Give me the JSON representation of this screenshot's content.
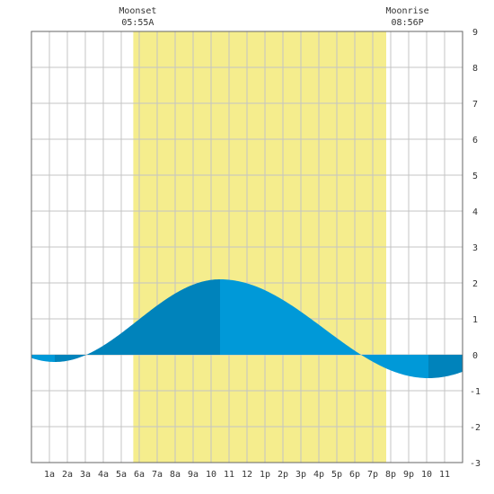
{
  "chart_data": {
    "type": "area",
    "title": "",
    "xlabel": "",
    "ylabel": "",
    "xlim": [
      0,
      24
    ],
    "ylim": [
      -3,
      9
    ],
    "grid": true,
    "x_ticks": [
      {
        "x": 1,
        "label": "1a"
      },
      {
        "x": 2,
        "label": "2a"
      },
      {
        "x": 3,
        "label": "3a"
      },
      {
        "x": 4,
        "label": "4a"
      },
      {
        "x": 5,
        "label": "5a"
      },
      {
        "x": 6,
        "label": "6a"
      },
      {
        "x": 7,
        "label": "7a"
      },
      {
        "x": 8,
        "label": "8a"
      },
      {
        "x": 9,
        "label": "9a"
      },
      {
        "x": 10,
        "label": "10"
      },
      {
        "x": 11,
        "label": "11"
      },
      {
        "x": 12,
        "label": "12"
      },
      {
        "x": 13,
        "label": "1p"
      },
      {
        "x": 14,
        "label": "2p"
      },
      {
        "x": 15,
        "label": "3p"
      },
      {
        "x": 16,
        "label": "4p"
      },
      {
        "x": 17,
        "label": "5p"
      },
      {
        "x": 18,
        "label": "6p"
      },
      {
        "x": 19,
        "label": "7p"
      },
      {
        "x": 20,
        "label": "8p"
      },
      {
        "x": 21,
        "label": "9p"
      },
      {
        "x": 22,
        "label": "10"
      },
      {
        "x": 23,
        "label": "11"
      }
    ],
    "y_ticks": [
      -3,
      -2,
      -1,
      0,
      1,
      2,
      3,
      4,
      5,
      6,
      7,
      8,
      9
    ],
    "daylight": {
      "start": 5.67,
      "end": 19.75,
      "color": "#f5ed8d"
    },
    "moon_events": [
      {
        "name": "Moonset",
        "time": "05:55A",
        "x": 5.92
      },
      {
        "name": "Moonrise",
        "time": "08:56P",
        "x": 20.93
      }
    ],
    "tide": {
      "low1": {
        "x": 1.3,
        "y": -0.2
      },
      "high": {
        "x": 10.5,
        "y": 2.1
      },
      "low2": {
        "x": 22.1,
        "y": -0.65
      },
      "colors": {
        "rising": "#0083bb",
        "falling": "#0099d8"
      }
    }
  }
}
